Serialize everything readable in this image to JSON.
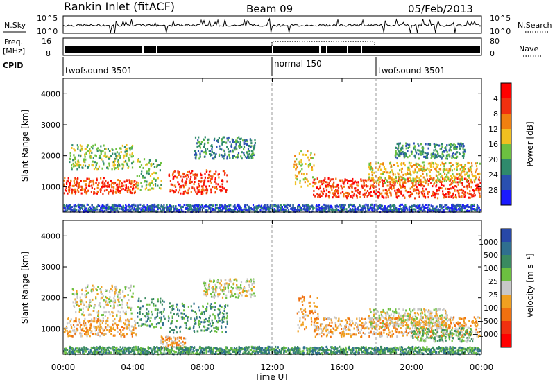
{
  "header": {
    "station": "Rankin Inlet (fitACF)",
    "beam": "Beam 09",
    "date": "05/Feb/2013"
  },
  "noise_panel": {
    "left_label": "N.Sky",
    "right_label": "N.Search",
    "left_ticks": [
      "10^5",
      "10^0"
    ],
    "right_ticks": [
      "10^5",
      "10^0"
    ]
  },
  "freq_panel": {
    "left_label_1": "Freq.",
    "left_label_2": "[MHz]",
    "right_label": "Nave",
    "left_ticks": [
      "16",
      "8"
    ],
    "right_ticks": [
      "80",
      "0"
    ]
  },
  "cpid": {
    "label": "CPID",
    "segments": [
      {
        "name": "twofsound 3501",
        "start_hour": 0
      },
      {
        "name": "normal 150",
        "start_hour": 12
      },
      {
        "name": "twofsound 3501",
        "start_hour": 18
      }
    ]
  },
  "chart_data": [
    {
      "type": "heatmap",
      "title": "",
      "ylabel": "Slant Range [km]",
      "xlabel": "",
      "xlim_hours": [
        0,
        24
      ],
      "ylim": [
        180,
        4500
      ],
      "y_ticks": [
        1000,
        2000,
        3000,
        4000
      ],
      "colorbar": {
        "label": "Power [dB]",
        "ticks": [
          "4",
          "8",
          "12",
          "16",
          "20",
          "24",
          "28"
        ],
        "colors": [
          "#1a1aff",
          "#2a50b0",
          "#2f8a6c",
          "#6cc040",
          "#f0c020",
          "#f08010",
          "#f03010",
          "#ff0000"
        ]
      }
    },
    {
      "type": "heatmap",
      "title": "",
      "ylabel": "Slant Range [km]",
      "xlabel": "Time UT",
      "xlim_hours": [
        0,
        24
      ],
      "ylim": [
        180,
        4500
      ],
      "y_ticks": [
        1000,
        2000,
        3000,
        4000
      ],
      "x_tick_labels": [
        "00:00",
        "04:00",
        "08:00",
        "12:00",
        "16:00",
        "20:00",
        "00:00"
      ],
      "colorbar": {
        "label": "Velocity [m s⁻¹]",
        "ticks": [
          "1000",
          "500",
          "100",
          "25",
          "−25",
          "−100",
          "−500",
          "−1000"
        ],
        "colors": [
          "#2848a8",
          "#2f6f8f",
          "#3a8a60",
          "#6cc040",
          "#c8c8c8",
          "#f0a020",
          "#f07010",
          "#f03010",
          "#ff0000"
        ]
      }
    }
  ],
  "bands": [
    {
      "start": 0.0,
      "end": 2.4,
      "center": 1030,
      "width": 260,
      "color_index": 6
    },
    {
      "start": 2.4,
      "end": 4.2,
      "center": 1000,
      "width": 220,
      "color_index": 6
    },
    {
      "start": 4.2,
      "end": 5.6,
      "center": 1400,
      "width": 500,
      "color_index": 3
    },
    {
      "start": 6.0,
      "end": 9.4,
      "center": 1150,
      "width": 380,
      "color_index": 6
    },
    {
      "start": 0.3,
      "end": 4.0,
      "center": 1950,
      "width": 400,
      "color_index": 3
    },
    {
      "start": 7.5,
      "end": 11.0,
      "center": 2250,
      "width": 350,
      "color_index": 2
    },
    {
      "start": 13.2,
      "end": 14.4,
      "center": 1600,
      "width": 600,
      "color_index": 4
    },
    {
      "start": 14.3,
      "end": 23.9,
      "center": 950,
      "width": 320,
      "color_index": 6
    },
    {
      "start": 17.5,
      "end": 23.9,
      "center": 1450,
      "width": 350,
      "color_index": 4
    },
    {
      "start": 19.0,
      "end": 23.0,
      "center": 2150,
      "width": 250,
      "color_index": 2
    },
    {
      "start": 0.0,
      "end": 23.9,
      "center": 300,
      "width": 120,
      "color_index": 1
    }
  ],
  "velocity_bands": [
    {
      "start": 0.0,
      "end": 4.2,
      "center": 1050,
      "width": 300,
      "color_index": 5
    },
    {
      "start": 0.5,
      "end": 4.0,
      "center": 1900,
      "width": 500,
      "color_index": 4
    },
    {
      "start": 4.2,
      "end": 5.8,
      "center": 1500,
      "width": 500,
      "color_index": 2
    },
    {
      "start": 6.0,
      "end": 9.4,
      "center": 1350,
      "width": 480,
      "color_index": 2
    },
    {
      "start": 5.5,
      "end": 7.0,
      "center": 550,
      "width": 200,
      "color_index": 5
    },
    {
      "start": 8.0,
      "end": 11.0,
      "center": 2300,
      "width": 300,
      "color_index": 4
    },
    {
      "start": 13.4,
      "end": 14.6,
      "center": 1500,
      "width": 600,
      "color_index": 5
    },
    {
      "start": 14.4,
      "end": 23.9,
      "center": 1050,
      "width": 320,
      "color_index": 5
    },
    {
      "start": 17.5,
      "end": 22.0,
      "center": 1350,
      "width": 300,
      "color_index": 4
    },
    {
      "start": 20.0,
      "end": 23.5,
      "center": 800,
      "width": 220,
      "color_index": 3
    },
    {
      "start": 0.0,
      "end": 23.9,
      "center": 300,
      "width": 120,
      "color_index": 2
    }
  ]
}
